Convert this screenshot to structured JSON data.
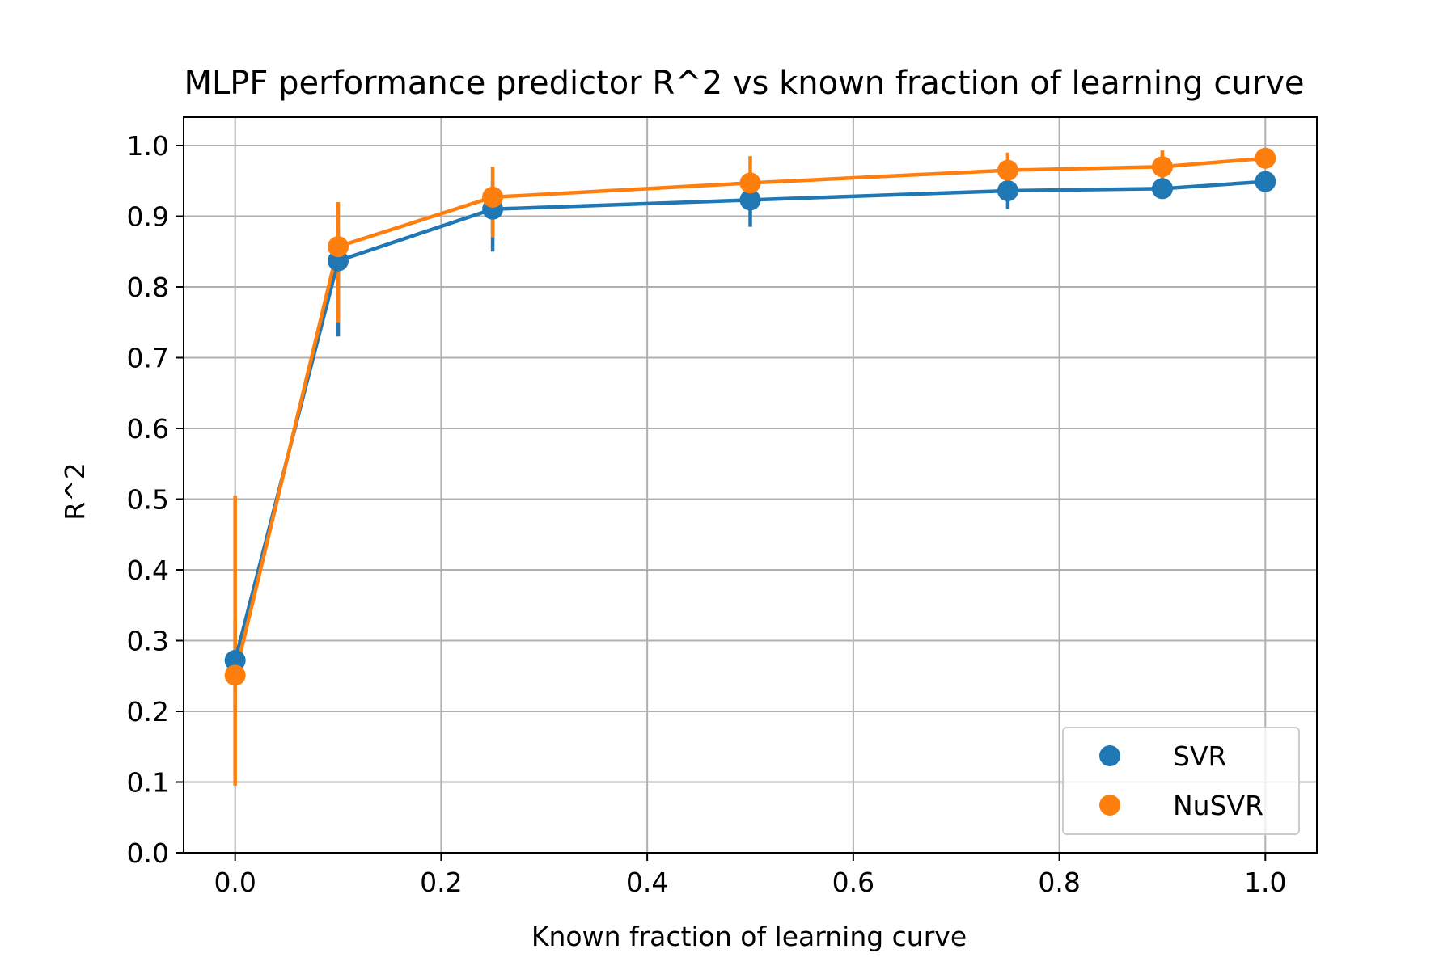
{
  "chart_data": {
    "type": "line",
    "title": "MLPF performance predictor R^2 vs known fraction of learning curve",
    "xlabel": "Known fraction of learning curve",
    "ylabel": "R^2",
    "xlim": [
      -0.05,
      1.05
    ],
    "ylim": [
      0.0,
      1.04
    ],
    "xticks": [
      "0.0",
      "0.2",
      "0.4",
      "0.6",
      "0.8",
      "1.0"
    ],
    "yticks": [
      "0.0",
      "0.1",
      "0.2",
      "0.3",
      "0.4",
      "0.5",
      "0.6",
      "0.7",
      "0.8",
      "0.9",
      "1.0"
    ],
    "grid": true,
    "legend_position": "lower-right",
    "x": [
      0.0,
      0.1,
      0.25,
      0.5,
      0.75,
      0.9,
      1.0
    ],
    "series": [
      {
        "name": "SVR",
        "color": "#1f77b4",
        "values": [
          0.272,
          0.837,
          0.91,
          0.923,
          0.936,
          0.939,
          0.949
        ],
        "err_low": [
          0.2,
          0.73,
          0.85,
          0.885,
          0.91,
          0.925,
          0.94
        ],
        "err_high": [
          0.33,
          0.88,
          0.95,
          0.96,
          0.96,
          0.955,
          0.96
        ]
      },
      {
        "name": "NuSVR",
        "color": "#ff7f0e",
        "values": [
          0.251,
          0.857,
          0.927,
          0.947,
          0.965,
          0.97,
          0.982
        ],
        "err_low": [
          0.095,
          0.75,
          0.87,
          0.91,
          0.94,
          0.95,
          0.975
        ],
        "err_high": [
          0.505,
          0.92,
          0.97,
          0.985,
          0.99,
          0.993,
          0.99
        ]
      }
    ]
  }
}
